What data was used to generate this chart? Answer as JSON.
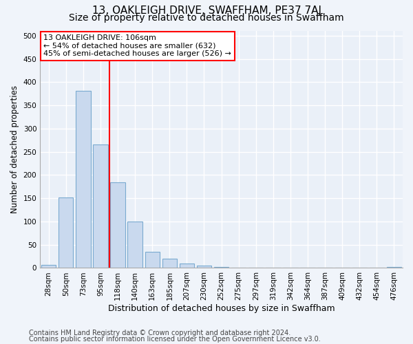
{
  "title": "13, OAKLEIGH DRIVE, SWAFFHAM, PE37 7AJ",
  "subtitle": "Size of property relative to detached houses in Swaffham",
  "xlabel": "Distribution of detached houses by size in Swaffham",
  "ylabel": "Number of detached properties",
  "bin_labels": [
    "28sqm",
    "50sqm",
    "73sqm",
    "95sqm",
    "118sqm",
    "140sqm",
    "163sqm",
    "185sqm",
    "207sqm",
    "230sqm",
    "252sqm",
    "275sqm",
    "297sqm",
    "319sqm",
    "342sqm",
    "364sqm",
    "387sqm",
    "409sqm",
    "432sqm",
    "454sqm",
    "476sqm"
  ],
  "bar_values": [
    6,
    152,
    381,
    265,
    184,
    100,
    34,
    20,
    10,
    5,
    2,
    1,
    0,
    0,
    0,
    0,
    0,
    0,
    0,
    0,
    2
  ],
  "bar_color": "#c9d9ee",
  "bar_edge_color": "#7aaad0",
  "vline_x_index": 3.5,
  "vline_color": "red",
  "annotation_title": "13 OAKLEIGH DRIVE: 106sqm",
  "annotation_line1": "← 54% of detached houses are smaller (632)",
  "annotation_line2": "45% of semi-detached houses are larger (526) →",
  "annotation_box_color": "white",
  "annotation_box_edgecolor": "red",
  "ylim": [
    0,
    510
  ],
  "yticks": [
    0,
    50,
    100,
    150,
    200,
    250,
    300,
    350,
    400,
    450,
    500
  ],
  "footnote1": "Contains HM Land Registry data © Crown copyright and database right 2024.",
  "footnote2": "Contains public sector information licensed under the Open Government Licence v3.0.",
  "bg_color": "#f0f4fa",
  "plot_bg_color": "#eaf0f8",
  "grid_color": "#ffffff",
  "title_fontsize": 11,
  "subtitle_fontsize": 10,
  "xlabel_fontsize": 9,
  "ylabel_fontsize": 8.5,
  "tick_fontsize": 7.5,
  "annot_fontsize": 8,
  "footnote_fontsize": 7
}
